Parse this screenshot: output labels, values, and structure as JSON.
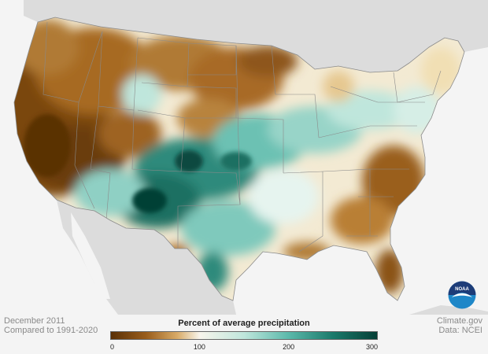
{
  "map": {
    "kind": "choropleth-precipitation-percent",
    "region": "contiguous-united-states",
    "palette": {
      "ocean": "#f4f4f4",
      "neighbor_land": "#dcdcdc",
      "dry_extreme": "#6b3d0c",
      "dry": "#b5752a",
      "near_normal_low": "#f1dfb4",
      "near_normal_high": "#eef6f2",
      "wet": "#5cb9ab",
      "wet_extreme": "#0d4a40",
      "border": "#8a8a8a"
    }
  },
  "footer": {
    "date": "December 2011",
    "comparison": "Compared to 1991-2020",
    "credit": "Climate.gov",
    "source": "Data: NCEI"
  },
  "legend": {
    "title": "Percent of average precipitation",
    "ticks": [
      "0",
      "100",
      "200",
      "300"
    ],
    "tick_values": [
      0,
      100,
      200,
      300
    ],
    "range": [
      0,
      300
    ],
    "stops": [
      {
        "value": 0,
        "color": "#5a3006"
      },
      {
        "value": 40,
        "color": "#9a5e1c"
      },
      {
        "value": 75,
        "color": "#d9ab68"
      },
      {
        "value": 100,
        "color": "#f8f5ec"
      },
      {
        "value": 150,
        "color": "#bfe6dc"
      },
      {
        "value": 200,
        "color": "#5cb9ab"
      },
      {
        "value": 250,
        "color": "#1b7a6b"
      },
      {
        "value": 300,
        "color": "#053f36"
      }
    ]
  },
  "logo": {
    "name": "NOAA",
    "text": "NOAA",
    "colors": {
      "top": "#1d3c78",
      "bottom": "#1e87c8",
      "bird": "#ffffff"
    }
  }
}
